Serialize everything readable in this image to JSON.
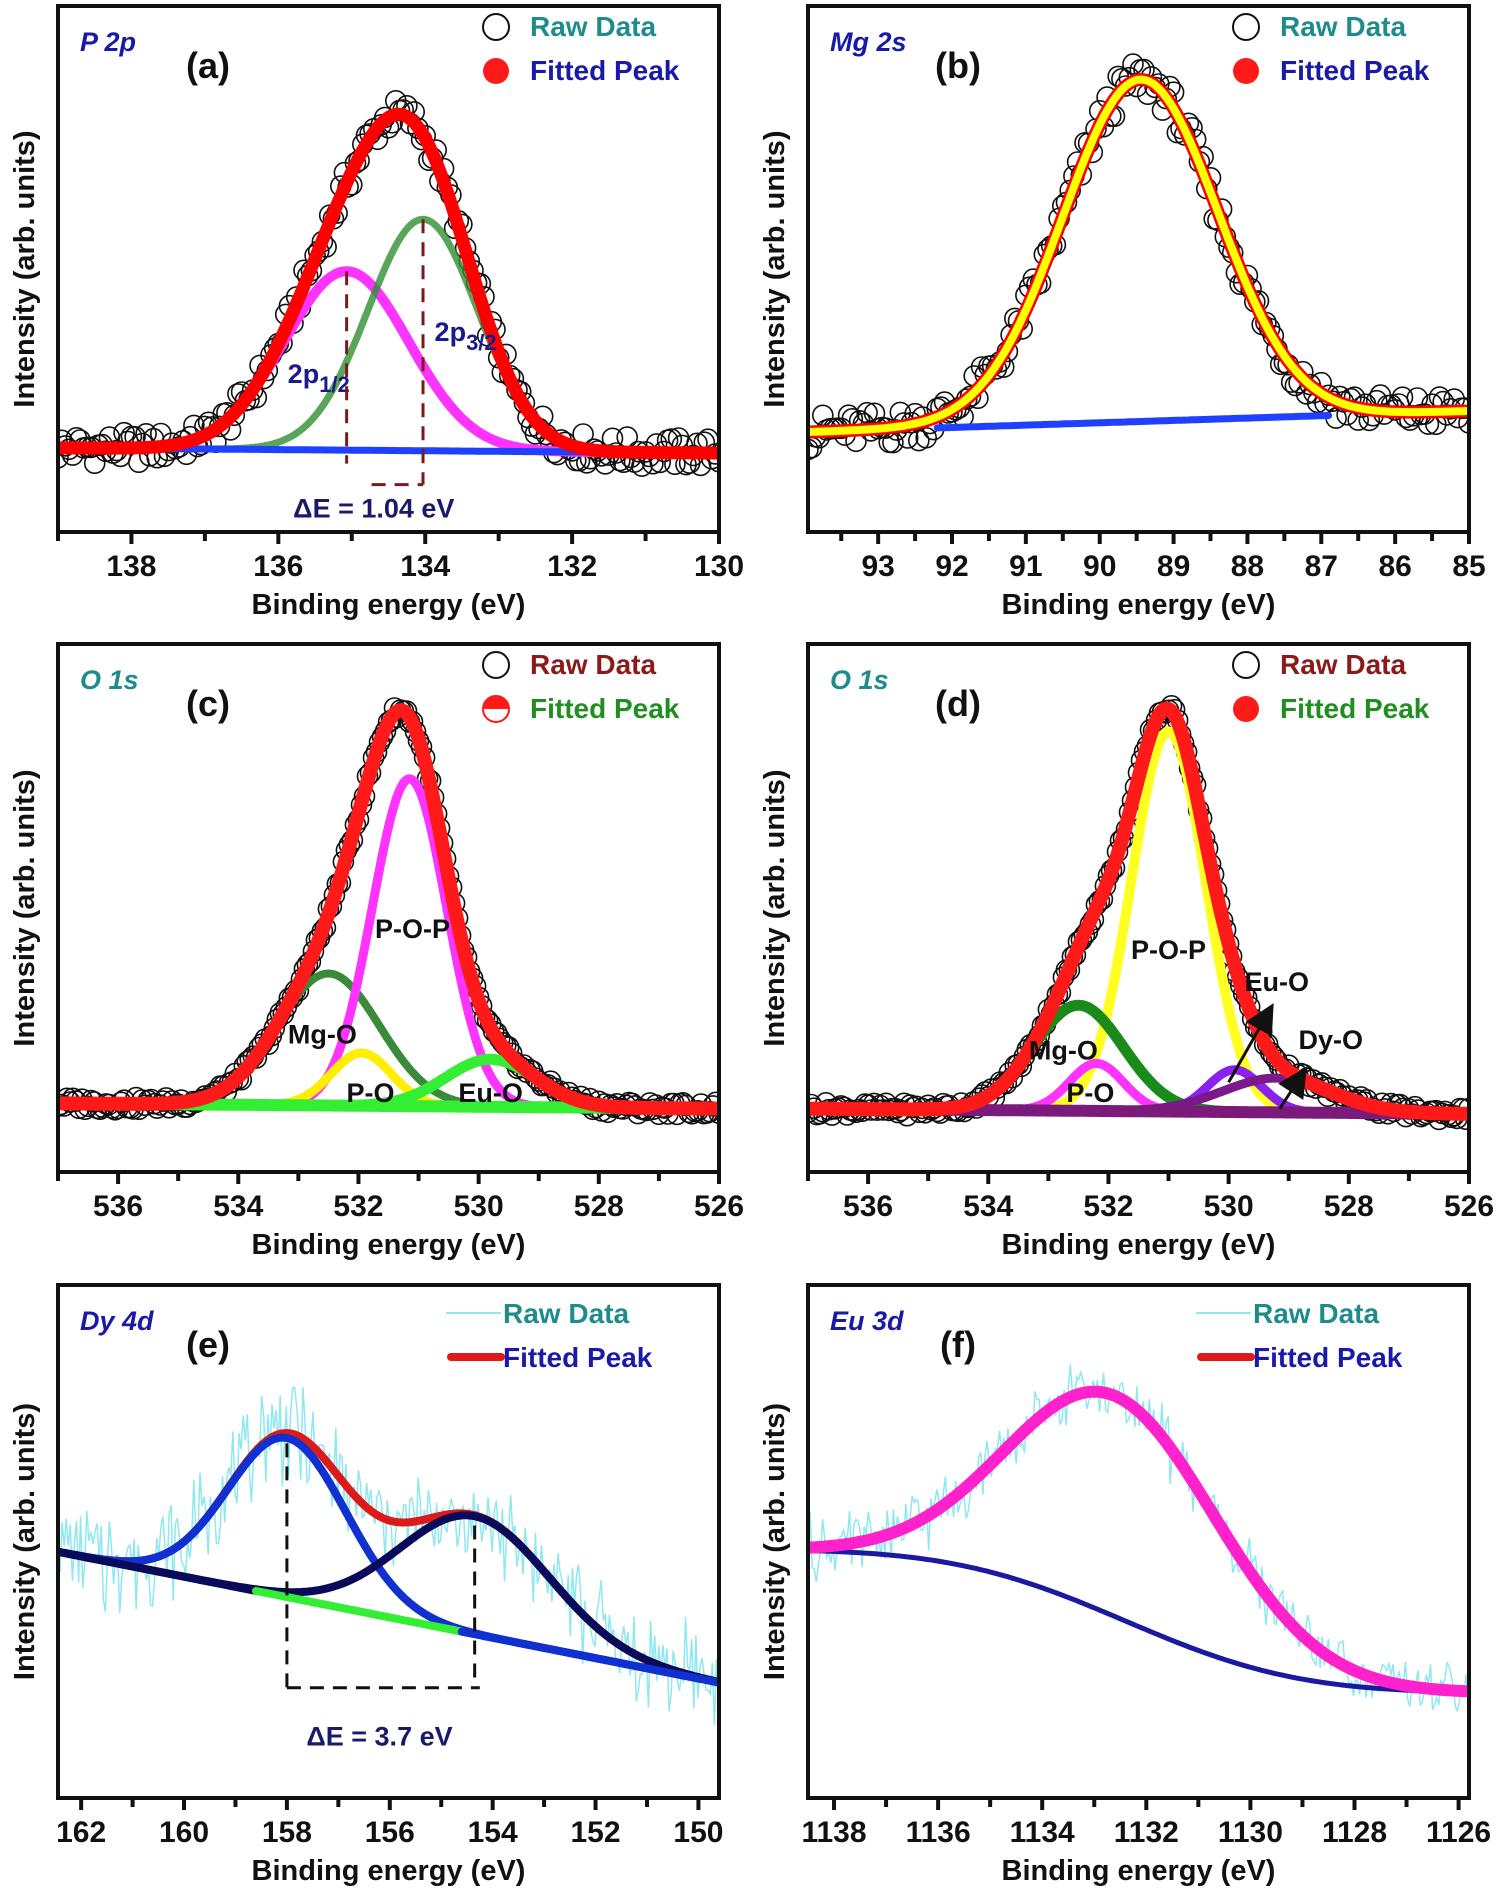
{
  "chart_data": [
    {
      "id": "a",
      "type": "line",
      "element_label": "P 2p",
      "element_color": "#1a1aa8",
      "panel_label": "(a)",
      "xlabel": "Binding energy (eV)",
      "ylabel": "Intensity (arb. units)",
      "xlim": [
        139,
        130
      ],
      "ylim": [
        0,
        1
      ],
      "xticks": [
        138,
        136,
        134,
        132,
        130
      ],
      "raw": {
        "style": "circles",
        "step": 0.05,
        "noise": 0.03
      },
      "background": {
        "type": "linear",
        "values": [
          0.16,
          0.15
        ],
        "segments": [
          {
            "from": 139,
            "to": 130,
            "color": "#2040ff"
          }
        ],
        "width": 7
      },
      "components": [
        {
          "name": "2p1/2",
          "center": 135.07,
          "amp": 0.34,
          "sigma": 0.85,
          "color": "#ff33ff",
          "width": 10
        },
        {
          "name": "2p3/2",
          "center": 134.03,
          "amp": 0.44,
          "sigma": 0.75,
          "color": "#2f8f2f",
          "width": 7
        }
      ],
      "fit": {
        "colors": [
          "#ff0000"
        ],
        "widths": [
          13
        ]
      },
      "legend": [
        {
          "label": "Raw Data",
          "marker": "open-circle",
          "color": "#1e8c8c"
        },
        {
          "label": "Fitted Peak",
          "marker": "filled-circle",
          "color": "#1a1aa8"
        }
      ],
      "labels": [
        {
          "text": "2p",
          "sub": "1/2",
          "color": "#1a1a8a"
        },
        {
          "text": "2p",
          "sub": "3/2",
          "color": "#1a1a8a"
        },
        {
          "text": "ΔE = 1.04 eV",
          "sub": "",
          "color": "#1a1a6a"
        }
      ],
      "delta_e": 1.04
    },
    {
      "id": "b",
      "type": "line",
      "element_label": "Mg 2s",
      "element_color": "#1a1aa8",
      "panel_label": "(b)",
      "xlabel": "Binding energy (eV)",
      "ylabel": "Intensity (arb. units)",
      "xlim": [
        93.95,
        85
      ],
      "ylim": [
        0,
        1
      ],
      "xticks": [
        93,
        92,
        91,
        90,
        89,
        88,
        87,
        86,
        85
      ],
      "raw": {
        "style": "circles",
        "step": 0.05,
        "noise": 0.035
      },
      "background": {
        "type": "linear",
        "values": [
          0.19,
          0.23
        ],
        "segments": [
          {
            "from": 92.2,
            "to": 86.9,
            "color": "#2040ff"
          }
        ],
        "width": 7
      },
      "components": [],
      "components_base": {
        "center": 89.45,
        "amp": 0.65,
        "sigma": 1.05
      },
      "fit": {
        "colors": [
          "#ff0000",
          "#ffff00"
        ],
        "widths": [
          13,
          8
        ]
      },
      "legend": [
        {
          "label": "Raw Data",
          "marker": "open-circle",
          "color": "#1e8c8c"
        },
        {
          "label": "Fitted Peak",
          "marker": "filled-circle",
          "color": "#1a1aa8"
        }
      ],
      "labels": []
    },
    {
      "id": "c",
      "type": "line",
      "element_label": "O 1s",
      "element_color": "#1e8c8c",
      "panel_label": "(c)",
      "xlabel": "Binding energy (eV)",
      "ylabel": "Intensity (arb. units)",
      "xlim": [
        537,
        526
      ],
      "ylim": [
        0,
        1
      ],
      "xticks": [
        536,
        534,
        532,
        530,
        528,
        526
      ],
      "raw": {
        "style": "circles",
        "step": 0.05,
        "noise": 0.012
      },
      "background": {
        "type": "linear",
        "values": [
          0.13,
          0.12
        ],
        "segments": [
          {
            "from": 537,
            "to": 526,
            "color": "#33ee33"
          }
        ],
        "width": 12
      },
      "components": [
        {
          "name": "Mg-O",
          "center": 532.5,
          "amp": 0.25,
          "sigma": 0.85,
          "color": "#3a8a3a",
          "width": 8
        },
        {
          "name": "P-O-P",
          "center": 531.15,
          "amp": 0.62,
          "sigma": 0.62,
          "color": "#ff33ff",
          "width": 9
        },
        {
          "name": "P-O",
          "center": 531.95,
          "amp": 0.1,
          "sigma": 0.5,
          "color": "#ffee00",
          "width": 9
        },
        {
          "name": "Eu-O",
          "center": 529.8,
          "amp": 0.09,
          "sigma": 0.75,
          "color": "#33ee33",
          "width": 11
        }
      ],
      "fit": {
        "colors": [
          "#ff1a1a"
        ],
        "widths": [
          14
        ]
      },
      "legend": [
        {
          "label": "Raw Data",
          "marker": "open-circle",
          "color": "#8b1a1a"
        },
        {
          "label": "Fitted Peak",
          "marker": "half-circle",
          "color": "#1f8f1f"
        }
      ],
      "labels": [
        {
          "text": "P-O-P",
          "sub": "",
          "color": "#111"
        },
        {
          "text": "Mg-O",
          "sub": "",
          "color": "#111"
        },
        {
          "text": "P-O",
          "sub": "",
          "color": "#111"
        },
        {
          "text": "Eu-O",
          "sub": "",
          "color": "#111"
        }
      ]
    },
    {
      "id": "d",
      "type": "line",
      "element_label": "O 1s",
      "element_color": "#1e8c8c",
      "panel_label": "(d)",
      "xlabel": "Binding energy (eV)",
      "ylabel": "Intensity (arb. units)",
      "xlim": [
        537,
        526
      ],
      "ylim": [
        0,
        1
      ],
      "xticks": [
        536,
        534,
        532,
        530,
        528,
        526
      ],
      "raw": {
        "style": "circles",
        "step": 0.05,
        "noise": 0.012
      },
      "background": {
        "type": "linear",
        "values": [
          0.12,
          0.11
        ],
        "segments": [
          {
            "from": 537,
            "to": 526,
            "color": "#7a1a7a"
          }
        ],
        "width": 12
      },
      "components": [
        {
          "name": "P-O-P",
          "center": 531.0,
          "amp": 0.72,
          "sigma": 0.62,
          "color": "#ffff22",
          "width": 10
        },
        {
          "name": "Mg-O",
          "center": 532.5,
          "amp": 0.2,
          "sigma": 0.75,
          "color": "#1a8a1a",
          "width": 11
        },
        {
          "name": "P-O",
          "center": 532.2,
          "amp": 0.09,
          "sigma": 0.45,
          "color": "#ff33ff",
          "width": 9
        },
        {
          "name": "Eu-O",
          "center": 529.9,
          "amp": 0.08,
          "sigma": 0.45,
          "color": "#8a22ee",
          "width": 9
        },
        {
          "name": "Dy-O",
          "center": 529.2,
          "amp": 0.065,
          "sigma": 0.9,
          "color": "#7a1a8a",
          "width": 9
        }
      ],
      "fit": {
        "colors": [
          "#ff1a1a"
        ],
        "widths": [
          14
        ]
      },
      "legend": [
        {
          "label": "Raw Data",
          "marker": "open-circle",
          "color": "#8b1a1a"
        },
        {
          "label": "Fitted Peak",
          "marker": "filled-circle",
          "color": "#1f8f1f"
        }
      ],
      "labels": [
        {
          "text": "P-O-P",
          "sub": "",
          "color": "#111"
        },
        {
          "text": "Mg-O",
          "sub": "",
          "color": "#111"
        },
        {
          "text": "P-O",
          "sub": "",
          "color": "#111"
        },
        {
          "text": "Eu-O",
          "sub": "",
          "color": "#111"
        },
        {
          "text": "Dy-O",
          "sub": "",
          "color": "#111"
        }
      ]
    },
    {
      "id": "e",
      "type": "line",
      "element_label": "Dy 4d",
      "element_color": "#1a1aa8",
      "panel_label": "(e)",
      "xlabel": "Binding energy (eV)",
      "ylabel": "Intensity (arb. units)",
      "xlim": [
        162.45,
        149.6
      ],
      "ylim": [
        0,
        1
      ],
      "xticks": [
        162,
        160,
        158,
        156,
        154,
        152,
        150
      ],
      "raw": {
        "style": "line",
        "step": 0.04,
        "noise": 0.14,
        "color": "#8fe8f0"
      },
      "background": {
        "type": "linear",
        "values": [
          0.48,
          0.225
        ],
        "segments": [
          {
            "from": 162.45,
            "to": 158.6,
            "color": "#0a0a5a"
          },
          {
            "from": 158.6,
            "to": 154.6,
            "color": "#33ee33"
          },
          {
            "from": 154.6,
            "to": 149.6,
            "color": "#1030d0"
          }
        ],
        "width": 8
      },
      "components": [
        {
          "name": "Dy 4d peak 1",
          "center": 158.0,
          "amp": 0.31,
          "sigma": 1.15,
          "color": "#1030d0",
          "width": 8
        },
        {
          "name": "Dy 4d peak 2",
          "center": 154.35,
          "amp": 0.23,
          "sigma": 1.45,
          "color": "#0a0a5a",
          "width": 8
        }
      ],
      "fit": {
        "colors": [
          "#dd1a1a"
        ],
        "widths": [
          8
        ]
      },
      "fit_under": true,
      "legend": [
        {
          "label": "Raw Data",
          "marker": "thin-line",
          "color": "#1e8c8c",
          "line_color": "#8fe8f0"
        },
        {
          "label": "Fitted Peak",
          "marker": "thick-line",
          "color": "#1a1aa8",
          "line_color": "#e01a1a"
        }
      ],
      "labels": [
        {
          "text": "ΔE = 3.7 eV",
          "sub": "",
          "color": "#1a1a6a"
        }
      ],
      "delta_e": 3.7
    },
    {
      "id": "f",
      "type": "line",
      "element_label": "Eu 3d",
      "element_color": "#1a1aa8",
      "panel_label": "(f)",
      "xlabel": "Binding energy (eV)",
      "ylabel": "Intensity (arb. units)",
      "xlim": [
        1138.5,
        1125.8
      ],
      "ylim": [
        0,
        1
      ],
      "xticks": [
        1138,
        1136,
        1134,
        1132,
        1130,
        1128,
        1126
      ],
      "raw": {
        "style": "line",
        "step": 0.04,
        "noise": 0.09,
        "color": "#8fe8f0"
      },
      "background": {
        "type": "shirley",
        "values": [
          0.485,
          0.205
        ],
        "center": 1132.4,
        "spread": 2.6,
        "segments": [
          {
            "from": 1138.5,
            "to": 1125.8,
            "color": "#1a1aa0"
          }
        ],
        "width": 5
      },
      "components": [],
      "components_base": {
        "center": 1132.6,
        "amp": 0.43,
        "sigma": 2.0
      },
      "fit": {
        "colors": [
          "#ff22cc"
        ],
        "widths": [
          12
        ]
      },
      "legend": [
        {
          "label": "Raw Data",
          "marker": "thin-line",
          "color": "#1e8c8c",
          "line_color": "#8fe8f0"
        },
        {
          "label": "Fitted Peak",
          "marker": "thick-line",
          "color": "#1a1aa8",
          "line_color": "#e01a1a"
        }
      ],
      "labels": []
    }
  ]
}
